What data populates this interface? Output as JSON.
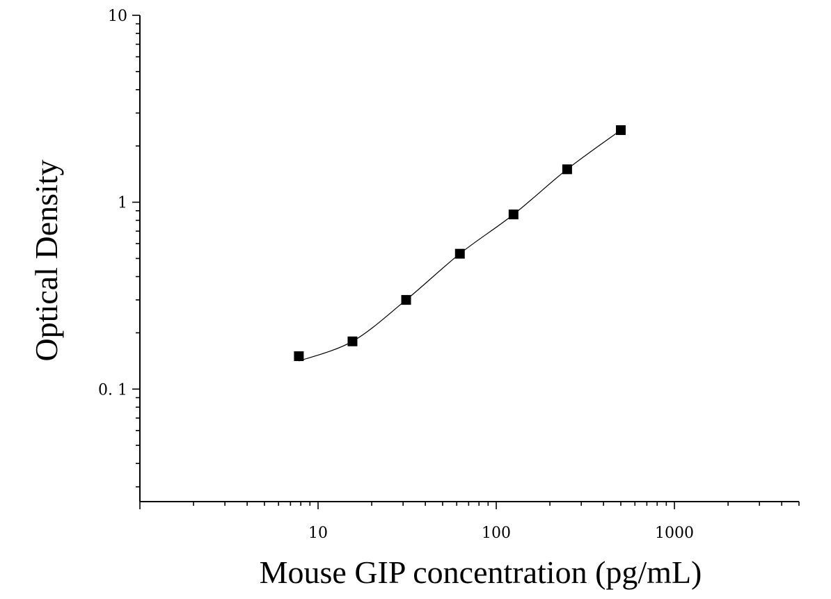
{
  "chart_data": {
    "type": "scatter",
    "xlabel": "Mouse GIP concentration (pg/mL)",
    "ylabel": "Optical Density",
    "xscale": "log",
    "yscale": "log",
    "xlim": [
      1,
      5000
    ],
    "ylim": [
      0.025,
      10
    ],
    "x_ticks": [
      {
        "value": 10,
        "label": "10"
      },
      {
        "value": 100,
        "label": "100"
      },
      {
        "value": 1000,
        "label": "1000"
      }
    ],
    "y_ticks": [
      {
        "value": 0.1,
        "label": "0. 1"
      },
      {
        "value": 1,
        "label": "1"
      },
      {
        "value": 10,
        "label": "10"
      }
    ],
    "grid": false,
    "legend": "none",
    "marker_color": "#000000",
    "series": [
      {
        "marker": "square",
        "x": [
          7.8,
          15.6,
          31.2,
          62.5,
          125,
          250,
          500
        ],
        "y": [
          0.15,
          0.18,
          0.3,
          0.53,
          0.86,
          1.5,
          2.43
        ]
      }
    ],
    "fit": {
      "type": "four-parameter-logistic",
      "x_range": [
        7.8,
        500
      ]
    }
  }
}
